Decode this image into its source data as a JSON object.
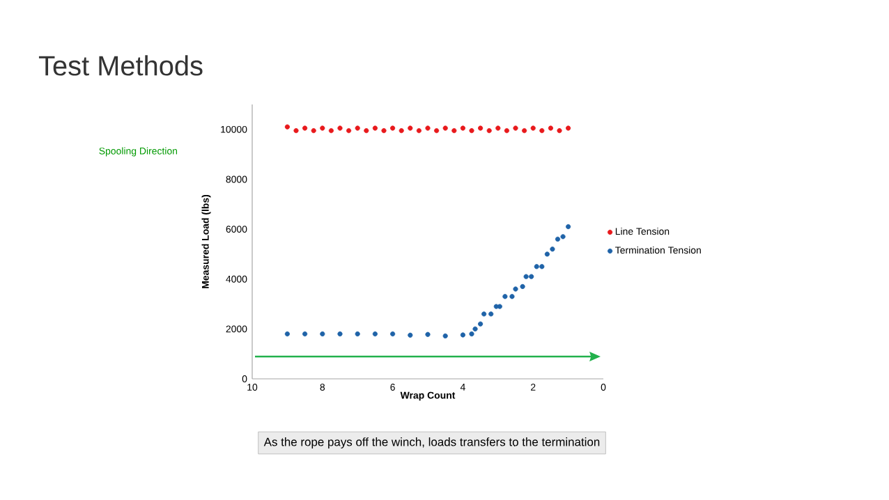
{
  "chart_data": {
    "type": "scatter",
    "title": "Test Methods",
    "xlabel": "Wrap Count",
    "ylabel": "Measured Load (lbs)",
    "annotations": [
      "Spooling Direction",
      "As the rope pays off the winch, loads transfers to the termination"
    ],
    "xlim": [
      10,
      0
    ],
    "ylim": [
      0,
      11000
    ],
    "xticks": [
      10,
      8,
      6,
      4,
      2,
      0
    ],
    "yticks": [
      0,
      2000,
      4000,
      6000,
      8000,
      10000
    ],
    "legend": "right",
    "series": [
      {
        "name": "Line Tension",
        "color": "#e8191c",
        "x": [
          9,
          8.75,
          8.5,
          8.25,
          8,
          7.75,
          7.5,
          7.25,
          7,
          6.75,
          6.5,
          6.25,
          6,
          5.75,
          5.5,
          5.25,
          5,
          4.75,
          4.5,
          4.25,
          4,
          3.75,
          3.5,
          3.25,
          3,
          2.75,
          2.5,
          2.25,
          2,
          1.75,
          1.5,
          1.25,
          1
        ],
        "values": [
          10100,
          9950,
          10050,
          9950,
          10050,
          9950,
          10050,
          9950,
          10050,
          9950,
          10050,
          9950,
          10050,
          9950,
          10050,
          9950,
          10050,
          9950,
          10050,
          9950,
          10050,
          9950,
          10050,
          9950,
          10050,
          9950,
          10050,
          9950,
          10050,
          9950,
          10050,
          9950,
          10050
        ]
      },
      {
        "name": "Termination Tension",
        "color": "#1f63a8",
        "x": [
          9,
          8.5,
          8,
          7.5,
          7,
          6.5,
          6,
          5.5,
          5,
          4.5,
          4,
          3.75,
          3.65,
          3.5,
          3.4,
          3.2,
          3.05,
          2.95,
          2.8,
          2.6,
          2.5,
          2.3,
          2.2,
          2.05,
          1.9,
          1.75,
          1.6,
          1.45,
          1.3,
          1.15,
          1
        ],
        "values": [
          1800,
          1800,
          1800,
          1800,
          1800,
          1800,
          1800,
          1750,
          1780,
          1720,
          1760,
          1800,
          2000,
          2200,
          2600,
          2600,
          2900,
          2900,
          3300,
          3300,
          3600,
          3700,
          4100,
          4100,
          4500,
          4500,
          5000,
          5200,
          5600,
          5700,
          6100
        ]
      }
    ]
  }
}
